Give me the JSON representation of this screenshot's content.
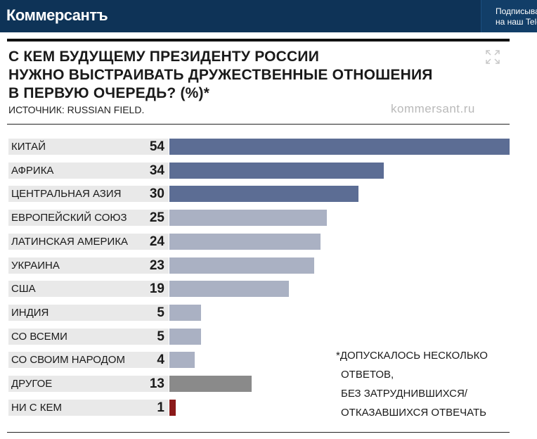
{
  "header": {
    "logo": "Коммерсантъ",
    "promo_line1": "Подписывайтесь",
    "promo_line2": "на наш Telegram"
  },
  "chart_data": {
    "type": "bar",
    "orientation": "horizontal",
    "title_lines": [
      "С КЕМ БУДУЩЕМУ ПРЕЗИДЕНТУ РОССИИ",
      "НУЖНО ВЫСТРАИВАТЬ ДРУЖЕСТВЕННЫЕ ОТНОШЕНИЯ",
      "В ПЕРВУЮ ОЧЕРЕДЬ? (%)*"
    ],
    "source": "ИСТОЧНИК: RUSSIAN FIELD.",
    "site": "kommersant.ru",
    "categories": [
      "КИТАЙ",
      "АФРИКА",
      "ЦЕНТРАЛЬНАЯ АЗИЯ",
      "ЕВРОПЕЙСКИЙ СОЮЗ",
      "ЛАТИНСКАЯ АМЕРИКА",
      "УКРАИНА",
      "США",
      "ИНДИЯ",
      "СО ВСЕМИ",
      "СО СВОИМ НАРОДОМ",
      "ДРУГОЕ",
      "НИ С КЕМ"
    ],
    "values": [
      54,
      34,
      30,
      25,
      24,
      23,
      19,
      5,
      5,
      4,
      13,
      1
    ],
    "bar_colors": [
      "#5c6d94",
      "#5c6d94",
      "#5c6d94",
      "#aab1c3",
      "#aab1c3",
      "#aab1c3",
      "#aab1c3",
      "#aab1c3",
      "#aab1c3",
      "#aab1c3",
      "#8a8a8a",
      "#8b1a1a"
    ],
    "xlim": [
      0,
      54
    ],
    "grid": false,
    "legend": "none",
    "note_lines": [
      "*ДОПУСКАЛОСЬ НЕСКОЛЬКО",
      "ОТВЕТОВ,",
      "БЕЗ ЗАТРУДНИВШИХСЯ/",
      "ОТКАЗАВШИХСЯ ОТВЕЧАТЬ"
    ]
  }
}
